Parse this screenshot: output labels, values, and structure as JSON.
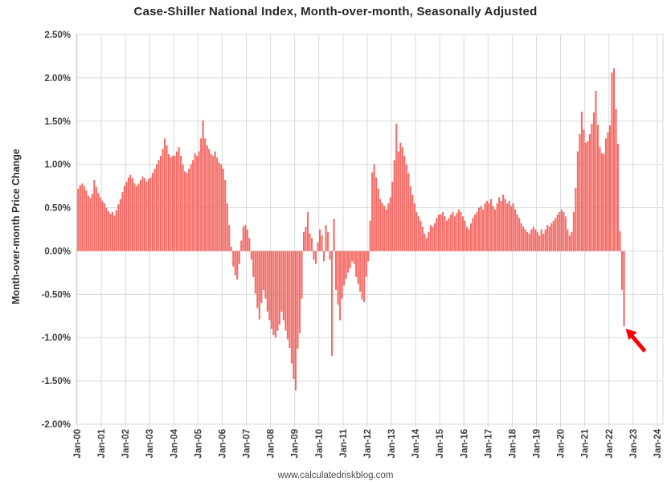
{
  "title": "Case-Shiller National Index, Month-over-month, Seasonally Adjusted",
  "footer": "www.calculatedriskblog.com",
  "y_axis": {
    "label": "Month-over-month Price Change",
    "tick_labels": [
      "2.50%",
      "2.00%",
      "1.50%",
      "1.00%",
      "0.50%",
      "0.00%",
      "-0.50%",
      "-1.00%",
      "-1.50%",
      "-2.00%"
    ]
  },
  "x_axis": {
    "tick_labels": [
      "Jan-00",
      "Jan-01",
      "Jan-02",
      "Jan-03",
      "Jan-04",
      "Jan-05",
      "Jan-06",
      "Jan-07",
      "Jan-08",
      "Jan-09",
      "Jan-10",
      "Jan-11",
      "Jan-12",
      "Jan-13",
      "Jan-14",
      "Jan-15",
      "Jan-16",
      "Jan-17",
      "Jan-18",
      "Jan-19",
      "Jan-20",
      "Jan-21",
      "Jan-22",
      "Jan-23",
      "Jan-24"
    ]
  },
  "colors": {
    "bar": "#F56B66",
    "grid": "#D9D9D9",
    "border": "#D9D9D9",
    "tick_text": "#404040",
    "title_text": "#262626",
    "arrow": "#FF0000"
  },
  "chart_data": {
    "type": "bar",
    "title": "Case-Shiller National Index, Month-over-month, Seasonally Adjusted",
    "xlabel": "",
    "ylabel": "Month-over-month Price Change",
    "ylim": [
      -2.0,
      2.5
    ],
    "y_tick_step": 0.5,
    "x_range_axis": [
      "Jan-2000",
      "Jan-2024"
    ],
    "grid": true,
    "legend": "none",
    "series_start": "Jan-2000",
    "series_end": "Aug-2022",
    "frequency": "monthly",
    "units": "percent month-over-month, seasonally adjusted",
    "annotation": {
      "type": "arrow",
      "color": "#FF0000",
      "points_to": "final bar, Aug-2022, approx -0.87%"
    },
    "values": [
      0.72,
      0.76,
      0.78,
      0.75,
      0.7,
      0.64,
      0.61,
      0.66,
      0.82,
      0.74,
      0.67,
      0.62,
      0.58,
      0.55,
      0.5,
      0.46,
      0.43,
      0.45,
      0.41,
      0.47,
      0.54,
      0.6,
      0.68,
      0.75,
      0.8,
      0.85,
      0.88,
      0.84,
      0.78,
      0.75,
      0.78,
      0.82,
      0.86,
      0.84,
      0.8,
      0.83,
      0.85,
      0.9,
      0.95,
      1.0,
      1.05,
      1.1,
      1.18,
      1.3,
      1.22,
      1.12,
      1.08,
      1.1,
      1.1,
      1.15,
      1.2,
      1.1,
      1.0,
      0.92,
      0.9,
      0.95,
      1.0,
      1.05,
      1.13,
      1.1,
      1.15,
      1.3,
      1.51,
      1.3,
      1.22,
      1.18,
      1.12,
      1.1,
      1.15,
      1.08,
      1.02,
      1.0,
      0.95,
      0.82,
      0.55,
      0.3,
      0.05,
      -0.18,
      -0.28,
      -0.33,
      -0.15,
      0.12,
      0.28,
      0.3,
      0.25,
      0.15,
      -0.1,
      -0.3,
      -0.49,
      -0.66,
      -0.79,
      -0.6,
      -0.45,
      -0.55,
      -0.7,
      -0.8,
      -0.9,
      -0.97,
      -1.0,
      -0.92,
      -0.85,
      -0.7,
      -0.8,
      -0.92,
      -1.02,
      -1.12,
      -1.3,
      -1.48,
      -1.61,
      -1.13,
      -0.95,
      -0.55,
      0.22,
      0.28,
      0.45,
      0.2,
      0.15,
      -0.1,
      -0.15,
      0.1,
      0.25,
      0.18,
      -0.12,
      0.3,
      0.22,
      -0.1,
      -1.21,
      0.37,
      -0.45,
      -0.62,
      -0.8,
      -0.55,
      -0.4,
      -0.32,
      -0.25,
      -0.2,
      -0.12,
      -0.15,
      -0.3,
      -0.38,
      -0.47,
      -0.56,
      -0.59,
      -0.3,
      -0.12,
      0.35,
      0.91,
      1.0,
      0.85,
      0.72,
      0.6,
      0.55,
      0.52,
      0.48,
      0.55,
      0.62,
      0.8,
      1.05,
      1.47,
      1.15,
      1.25,
      1.2,
      1.1,
      1.0,
      0.9,
      0.75,
      0.65,
      0.55,
      0.45,
      0.4,
      0.35,
      0.28,
      0.2,
      0.15,
      0.22,
      0.3,
      0.28,
      0.32,
      0.38,
      0.42,
      0.42,
      0.45,
      0.4,
      0.35,
      0.38,
      0.42,
      0.45,
      0.4,
      0.44,
      0.48,
      0.45,
      0.4,
      0.35,
      0.28,
      0.25,
      0.32,
      0.38,
      0.42,
      0.45,
      0.5,
      0.52,
      0.48,
      0.55,
      0.58,
      0.55,
      0.6,
      0.52,
      0.48,
      0.55,
      0.62,
      0.58,
      0.65,
      0.6,
      0.55,
      0.58,
      0.52,
      0.55,
      0.48,
      0.42,
      0.38,
      0.32,
      0.28,
      0.25,
      0.22,
      0.2,
      0.25,
      0.28,
      0.25,
      0.22,
      0.18,
      0.25,
      0.2,
      0.25,
      0.3,
      0.28,
      0.32,
      0.35,
      0.38,
      0.42,
      0.45,
      0.48,
      0.45,
      0.4,
      0.25,
      0.18,
      0.22,
      0.45,
      0.73,
      1.15,
      1.35,
      1.61,
      1.4,
      1.25,
      1.27,
      1.35,
      1.47,
      1.6,
      1.85,
      1.46,
      1.2,
      1.13,
      1.12,
      1.3,
      1.37,
      1.45,
      2.06,
      2.11,
      1.64,
      1.24,
      0.23,
      -0.45,
      -0.87
    ]
  }
}
